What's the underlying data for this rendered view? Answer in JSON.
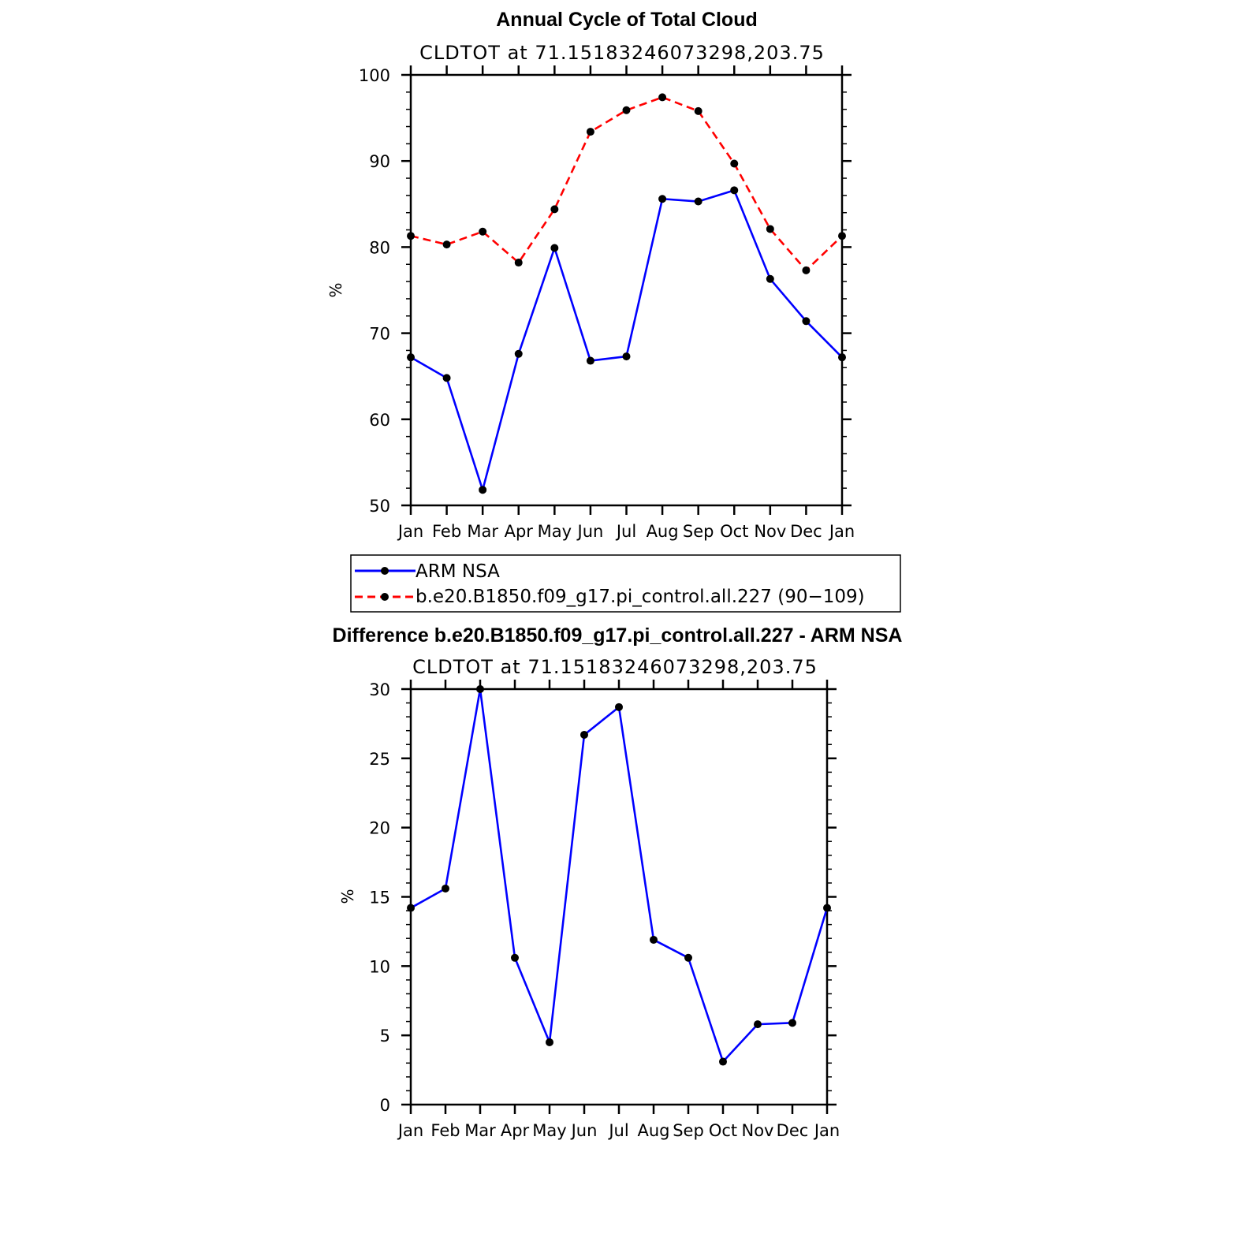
{
  "chart_data": [
    {
      "type": "line",
      "title": "Annual Cycle of Total Cloud",
      "subtitle": "CLDTOT at 71.15183246073298,203.75",
      "ylabel": "%",
      "xlabel": "",
      "categories": [
        "Jan",
        "Feb",
        "Mar",
        "Apr",
        "May",
        "Jun",
        "Jul",
        "Aug",
        "Sep",
        "Oct",
        "Nov",
        "Dec",
        "Jan"
      ],
      "ylim": [
        50,
        100
      ],
      "yticks": [
        50,
        60,
        70,
        80,
        90,
        100
      ],
      "series": [
        {
          "name": "ARM NSA",
          "color": "#0000ff",
          "dash": "solid",
          "values": [
            67.2,
            64.8,
            51.8,
            67.6,
            79.9,
            66.8,
            67.3,
            85.6,
            85.3,
            86.6,
            76.3,
            71.4,
            67.2
          ]
        },
        {
          "name": "b.e20.B1850.f09_g17.pi_control.all.227 (90−109)",
          "color": "#ff0000",
          "dash": "dashed",
          "values": [
            81.3,
            80.3,
            81.8,
            78.2,
            84.4,
            93.4,
            95.9,
            97.4,
            95.8,
            89.7,
            82.1,
            77.3,
            81.3
          ]
        }
      ],
      "legend": "below"
    },
    {
      "type": "line",
      "title": "Difference b.e20.B1850.f09_g17.pi_control.all.227 - ARM NSA",
      "subtitle": "CLDTOT at 71.15183246073298,203.75",
      "ylabel": "%",
      "xlabel": "",
      "categories": [
        "Jan",
        "Feb",
        "Mar",
        "Apr",
        "May",
        "Jun",
        "Jul",
        "Aug",
        "Sep",
        "Oct",
        "Nov",
        "Dec",
        "Jan"
      ],
      "ylim": [
        0,
        30
      ],
      "yticks": [
        0,
        5,
        10,
        15,
        20,
        25,
        30
      ],
      "series": [
        {
          "color": "#0000ff",
          "dash": "solid",
          "values": [
            14.2,
            15.6,
            30.0,
            10.6,
            4.5,
            26.7,
            28.7,
            11.9,
            10.6,
            3.1,
            5.8,
            5.9,
            14.2
          ]
        }
      ]
    }
  ]
}
